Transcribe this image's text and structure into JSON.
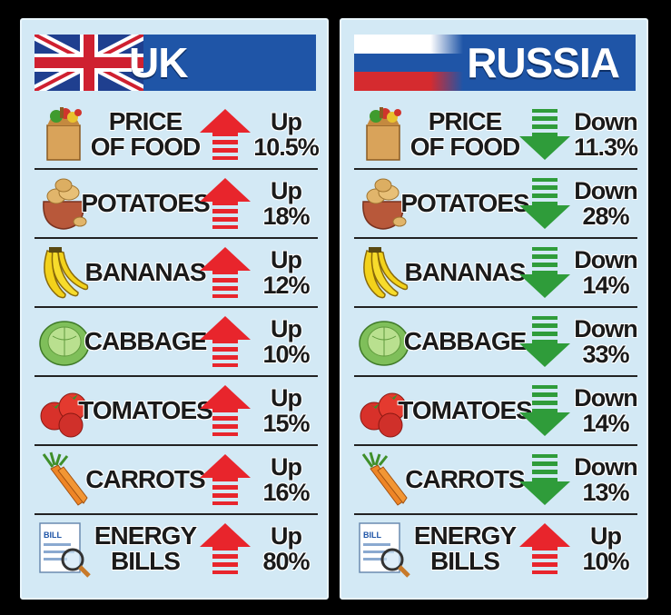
{
  "panels": [
    {
      "title": "UK",
      "flag": "uk-flag-icon",
      "rows": [
        {
          "label_lines": [
            "PRICE",
            "OF FOOD"
          ],
          "icon": "grocery-bag-icon",
          "direction": "up",
          "change_word": "Up",
          "change_value": "10.5%"
        },
        {
          "label_lines": [
            "POTATOES"
          ],
          "icon": "potato-sack-icon",
          "direction": "up",
          "change_word": "Up",
          "change_value": "18%"
        },
        {
          "label_lines": [
            "BANANAS"
          ],
          "icon": "banana-icon",
          "direction": "up",
          "change_word": "Up",
          "change_value": "12%"
        },
        {
          "label_lines": [
            "CABBAGE"
          ],
          "icon": "cabbage-icon",
          "direction": "up",
          "change_word": "Up",
          "change_value": "10%"
        },
        {
          "label_lines": [
            "TOMATOES"
          ],
          "icon": "tomato-icon",
          "direction": "up",
          "change_word": "Up",
          "change_value": "15%"
        },
        {
          "label_lines": [
            "CARROTS"
          ],
          "icon": "carrot-icon",
          "direction": "up",
          "change_word": "Up",
          "change_value": "16%"
        },
        {
          "label_lines": [
            "ENERGY",
            "BILLS"
          ],
          "icon": "bill-magnifier-icon",
          "direction": "up",
          "change_word": "Up",
          "change_value": "80%"
        }
      ]
    },
    {
      "title": "RUSSIA",
      "flag": "russia-flag-icon",
      "rows": [
        {
          "label_lines": [
            "PRICE",
            "OF FOOD"
          ],
          "icon": "grocery-bag-icon",
          "direction": "down",
          "change_word": "Down",
          "change_value": "11.3%"
        },
        {
          "label_lines": [
            "POTATOES"
          ],
          "icon": "potato-sack-icon",
          "direction": "down",
          "change_word": "Down",
          "change_value": "28%"
        },
        {
          "label_lines": [
            "BANANAS"
          ],
          "icon": "banana-icon",
          "direction": "down",
          "change_word": "Down",
          "change_value": "14%"
        },
        {
          "label_lines": [
            "CABBAGE"
          ],
          "icon": "cabbage-icon",
          "direction": "down",
          "change_word": "Down",
          "change_value": "33%"
        },
        {
          "label_lines": [
            "TOMATOES"
          ],
          "icon": "tomato-icon",
          "direction": "down",
          "change_word": "Down",
          "change_value": "14%"
        },
        {
          "label_lines": [
            "CARROTS"
          ],
          "icon": "carrot-icon",
          "direction": "down",
          "change_word": "Down",
          "change_value": "13%"
        },
        {
          "label_lines": [
            "ENERGY",
            "BILLS"
          ],
          "icon": "bill-magnifier-icon",
          "direction": "up",
          "change_word": "Up",
          "change_value": "10%"
        }
      ]
    }
  ],
  "colors": {
    "up_arrow": "#e8252c",
    "down_arrow": "#2f9c3a",
    "header_bg": "#1f55a7",
    "panel_bg": "#d3e9f5"
  }
}
